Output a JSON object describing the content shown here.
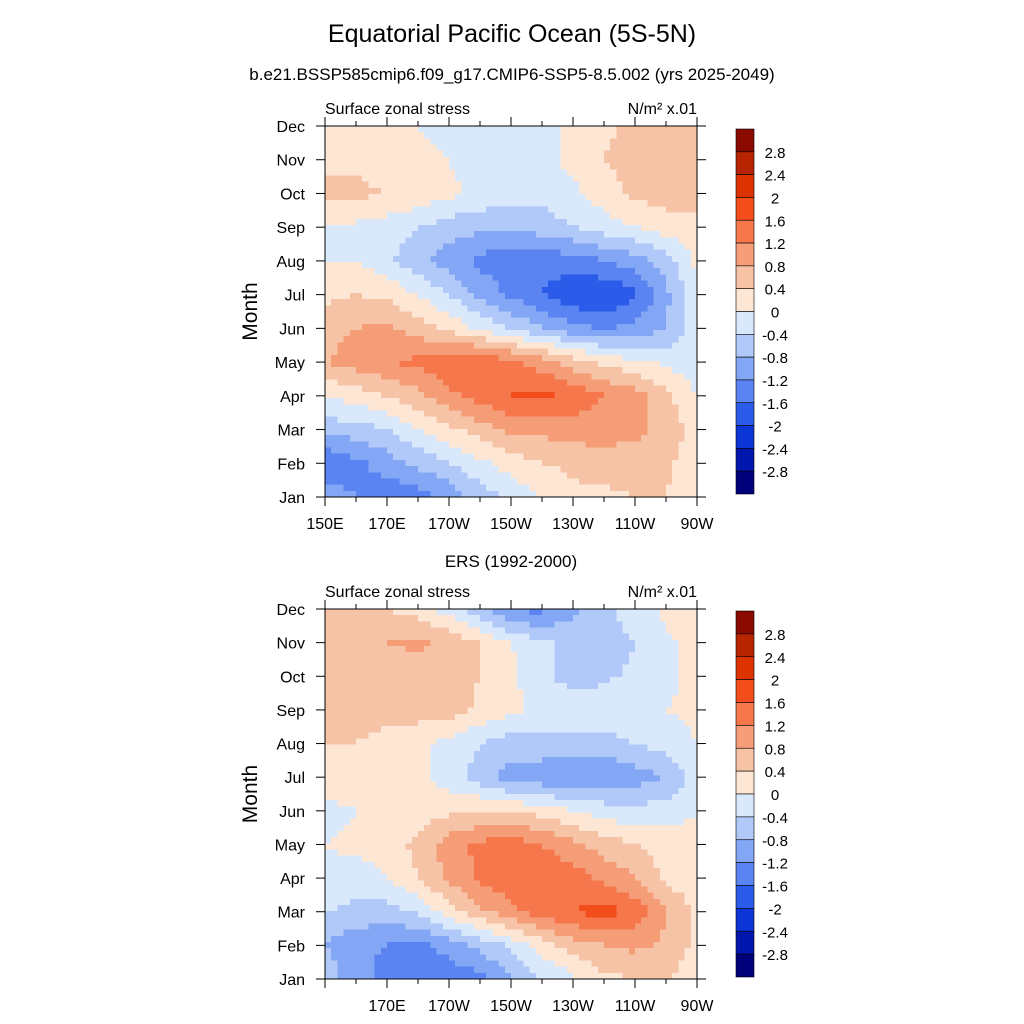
{
  "figure": {
    "title": "Equatorial Pacific Ocean (5S-5N)",
    "subtitle": "b.e21.BSSP585cmip6.f09_g17.CMIP6-SSP5-8.5.002 (yrs 2025-2049)"
  },
  "colorbar": {
    "levels": [
      "2.8",
      "2.4",
      "2",
      "1.6",
      "1.2",
      "0.8",
      "0.4",
      "0",
      "-0.4",
      "-0.8",
      "-1.2",
      "-1.6",
      "-2",
      "-2.4",
      "-2.8"
    ],
    "colors": [
      "#8b0a00",
      "#b62400",
      "#dc3300",
      "#f24d1a",
      "#f7774d",
      "#f59d77",
      "#f6c3a6",
      "#fde6d3",
      "#d9e8fb",
      "#b0c9f8",
      "#83a6f5",
      "#5a84f1",
      "#2b5ce9",
      "#0c35d6",
      "#0016ad",
      "#00007a"
    ]
  },
  "chart_data": [
    {
      "type": "heatmap",
      "title": "",
      "left_label": "Surface zonal stress",
      "units": "N/m² x.01",
      "ylabel": "Month",
      "xlabel": "",
      "x_ticks": [
        "150E",
        "170E",
        "170W",
        "150W",
        "130W",
        "110W",
        "90W"
      ],
      "y_ticks": [
        "Jan",
        "Feb",
        "Mar",
        "Apr",
        "May",
        "Jun",
        "Jul",
        "Aug",
        "Sep",
        "Oct",
        "Nov",
        "Dec"
      ],
      "x_lon": [
        150,
        160,
        170,
        180,
        190,
        200,
        210,
        220,
        230,
        240,
        250,
        260,
        270
      ],
      "rows_jan_to_dec": [
        [
          -1.0,
          -1.2,
          -1.5,
          -1.4,
          -1.1,
          -0.6,
          -0.3,
          0.0,
          0.3,
          0.3,
          0.4,
          0.4,
          0.1
        ],
        [
          -1.6,
          -1.3,
          -1.0,
          -0.7,
          -0.4,
          -0.1,
          0.2,
          0.4,
          0.5,
          0.6,
          0.6,
          0.5,
          0.1
        ],
        [
          -0.6,
          -0.6,
          -0.4,
          0.0,
          0.3,
          0.6,
          0.9,
          0.9,
          1.0,
          1.0,
          0.9,
          0.7,
          0.2
        ],
        [
          0.0,
          0.2,
          0.4,
          0.7,
          1.1,
          1.4,
          1.6,
          1.7,
          1.5,
          1.2,
          1.0,
          0.5,
          0.0
        ],
        [
          0.8,
          1.0,
          1.2,
          1.3,
          1.5,
          1.6,
          1.3,
          1.0,
          0.6,
          0.3,
          0.1,
          -0.1,
          -0.2
        ],
        [
          0.6,
          0.8,
          0.9,
          0.6,
          0.3,
          -0.1,
          -0.4,
          -0.8,
          -1.1,
          -1.2,
          -1.1,
          -0.8,
          -0.2
        ],
        [
          0.3,
          0.4,
          0.3,
          0.0,
          -0.4,
          -0.9,
          -1.3,
          -1.6,
          -1.9,
          -2.0,
          -1.7,
          -0.9,
          -0.1
        ],
        [
          0.0,
          0.0,
          -0.3,
          -0.7,
          -1.0,
          -1.3,
          -1.5,
          -1.5,
          -1.4,
          -1.2,
          -1.0,
          -0.6,
          0.1
        ],
        [
          0.0,
          -0.1,
          -0.2,
          -0.4,
          -0.6,
          -0.7,
          -0.7,
          -0.6,
          -0.4,
          -0.2,
          0.0,
          0.2,
          0.3
        ],
        [
          0.5,
          0.5,
          0.4,
          0.3,
          0.1,
          -0.1,
          -0.2,
          -0.3,
          -0.1,
          0.2,
          0.5,
          0.6,
          0.6
        ],
        [
          0.3,
          0.3,
          0.2,
          0.1,
          0.0,
          -0.2,
          -0.3,
          -0.1,
          0.1,
          0.4,
          0.6,
          0.7,
          0.6
        ],
        [
          0.2,
          0.1,
          0.1,
          0.0,
          -0.1,
          -0.2,
          -0.3,
          -0.2,
          0.1,
          0.3,
          0.5,
          0.6,
          0.5
        ]
      ]
    },
    {
      "type": "heatmap",
      "title": "ERS (1992-2000)",
      "left_label": "Surface zonal stress",
      "units": "N/m² x.01",
      "ylabel": "Month",
      "xlabel": "",
      "x_ticks": [
        "",
        "170E",
        "170W",
        "150W",
        "130W",
        "110W",
        "90W"
      ],
      "y_ticks": [
        "Jan",
        "Feb",
        "Mar",
        "Apr",
        "May",
        "Jun",
        "Jul",
        "Aug",
        "Sep",
        "Oct",
        "Nov",
        "Dec"
      ],
      "x_lon": [
        150,
        160,
        170,
        180,
        190,
        200,
        210,
        220,
        230,
        240,
        250,
        260,
        270
      ],
      "rows_jan_to_dec": [
        [
          -0.6,
          -1.0,
          -1.4,
          -1.6,
          -1.5,
          -1.3,
          -0.9,
          -0.4,
          -0.1,
          0.3,
          0.4,
          0.4,
          0.2
        ],
        [
          -0.8,
          -1.1,
          -1.2,
          -1.3,
          -1.0,
          -0.7,
          -0.3,
          0.2,
          0.6,
          0.8,
          0.9,
          0.7,
          0.3
        ],
        [
          -0.4,
          -0.5,
          -0.6,
          -0.3,
          0.2,
          0.7,
          1.1,
          1.4,
          1.6,
          1.8,
          1.5,
          0.8,
          0.3
        ],
        [
          -0.1,
          -0.2,
          0.0,
          0.4,
          0.9,
          1.3,
          1.5,
          1.6,
          1.4,
          1.1,
          0.8,
          0.3,
          0.2
        ],
        [
          0.0,
          0.1,
          0.2,
          0.5,
          1.0,
          1.3,
          1.4,
          1.2,
          0.9,
          0.6,
          0.4,
          0.2,
          0.1
        ],
        [
          -0.2,
          0.0,
          0.2,
          0.2,
          0.3,
          0.4,
          0.4,
          0.2,
          0.0,
          -0.2,
          -0.3,
          -0.2,
          0.0
        ],
        [
          0.3,
          0.4,
          0.3,
          0.1,
          -0.2,
          -0.6,
          -1.0,
          -1.1,
          -1.2,
          -1.1,
          -1.0,
          -0.8,
          -0.2
        ],
        [
          0.4,
          0.4,
          0.3,
          0.1,
          -0.1,
          -0.4,
          -0.6,
          -0.5,
          -0.6,
          -0.6,
          -0.4,
          -0.2,
          0.0
        ],
        [
          0.4,
          0.5,
          0.5,
          0.6,
          0.6,
          0.3,
          0.1,
          -0.1,
          -0.1,
          -0.1,
          0.0,
          0.0,
          0.1
        ],
        [
          0.4,
          0.6,
          0.6,
          0.5,
          0.6,
          0.4,
          0.1,
          -0.3,
          -0.6,
          -0.5,
          -0.3,
          -0.1,
          0.1
        ],
        [
          0.6,
          0.7,
          0.8,
          0.9,
          0.7,
          0.4,
          0.0,
          -0.3,
          -0.5,
          -0.6,
          -0.4,
          -0.1,
          0.2
        ],
        [
          0.5,
          0.4,
          0.4,
          0.2,
          -0.2,
          -0.7,
          -1.3,
          -1.3,
          -0.9,
          -0.5,
          -0.2,
          0.1,
          0.4
        ]
      ]
    }
  ]
}
